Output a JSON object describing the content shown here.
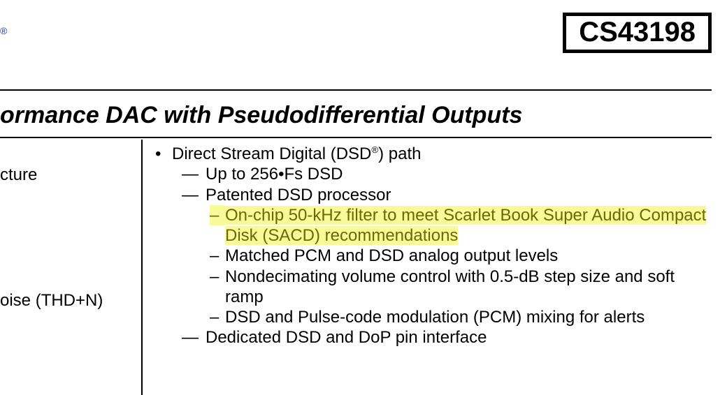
{
  "header": {
    "reg_mark": "®",
    "part_number": "CS43198"
  },
  "title": "ormance DAC with Pseudodifferential Outputs",
  "left_fragments": [
    "cture",
    "oise (THD+N)"
  ],
  "markers": {
    "l1": "•",
    "l2": "—",
    "l3": "–"
  },
  "highlight": {
    "bg": "#f8fa9a",
    "fg": "#6b6a00"
  },
  "dsd": {
    "title_pre": "Direct Stream Digital (DSD",
    "title_reg": "®",
    "title_post": ") path",
    "sub": [
      {
        "text": "Up to 256•Fs DSD"
      },
      {
        "text": "Patented DSD processor",
        "sub": [
          {
            "text": "On-chip 50-kHz filter to meet Scarlet Book Super Audio Compact Disk (SACD) recommendations",
            "highlight": true
          },
          {
            "text": "Matched PCM and DSD analog output levels"
          },
          {
            "text": "Nondecimating volume control with 0.5-dB step size and soft ramp"
          },
          {
            "text": "DSD and Pulse-code modulation (PCM) mixing for alerts"
          }
        ]
      },
      {
        "text": "Dedicated DSD and DoP pin interface"
      }
    ]
  }
}
